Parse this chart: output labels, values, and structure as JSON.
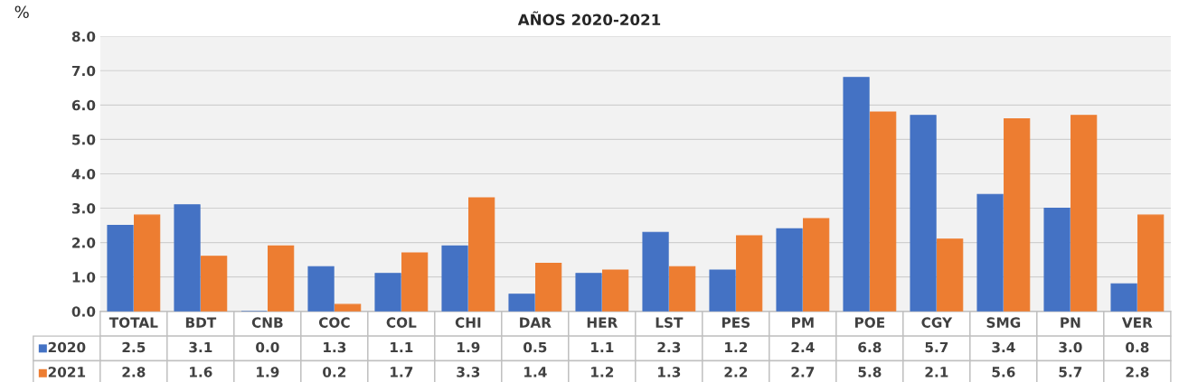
{
  "chart_data": {
    "type": "bar",
    "title": "AÑOS 2020-2021",
    "ylabel": "%",
    "categories": [
      "TOTAL",
      "BDT",
      "CNB",
      "COC",
      "COL",
      "CHI",
      "DAR",
      "HER",
      "LST",
      "PES",
      "PM",
      "POE",
      "CGY",
      "SMG",
      "PN",
      "VER"
    ],
    "series": [
      {
        "name": "2020",
        "color": "#4472c4",
        "values": [
          2.5,
          3.1,
          0.0,
          1.3,
          1.1,
          1.9,
          0.5,
          1.1,
          2.3,
          1.2,
          2.4,
          6.8,
          5.7,
          3.4,
          3.0,
          0.8
        ],
        "value_labels": [
          "2.5",
          "3.1",
          "0.0",
          "1.3",
          "1.1",
          "1.9",
          "0.5",
          "1.1",
          "2.3",
          "1.2",
          "2.4",
          "6.8",
          "5.7",
          "3.4",
          "3.0",
          "0.8"
        ]
      },
      {
        "name": "2021",
        "color": "#ed7d31",
        "values": [
          2.8,
          1.6,
          1.9,
          0.2,
          1.7,
          3.3,
          1.4,
          1.2,
          1.3,
          2.2,
          2.7,
          5.8,
          2.1,
          5.6,
          5.7,
          2.8
        ],
        "value_labels": [
          "2.8",
          "1.6",
          "1.9",
          "0.2",
          "1.7",
          "3.3",
          "1.4",
          "1.2",
          "1.3",
          "2.2",
          "2.7",
          "5.8",
          "2.1",
          "5.6",
          "5.7",
          "2.8"
        ]
      }
    ],
    "ylim": [
      0,
      8
    ],
    "yticks": [
      {
        "value": 0,
        "label": "0.0"
      },
      {
        "value": 1,
        "label": "1.0"
      },
      {
        "value": 2,
        "label": "2.0"
      },
      {
        "value": 3,
        "label": "3.0"
      },
      {
        "value": 4,
        "label": "4.0"
      },
      {
        "value": 5,
        "label": "5.0"
      },
      {
        "value": 6,
        "label": "6.0"
      },
      {
        "value": 7,
        "label": "7.0"
      },
      {
        "value": 8,
        "label": "8.0"
      }
    ],
    "grid": "y",
    "legend": "bottom"
  }
}
